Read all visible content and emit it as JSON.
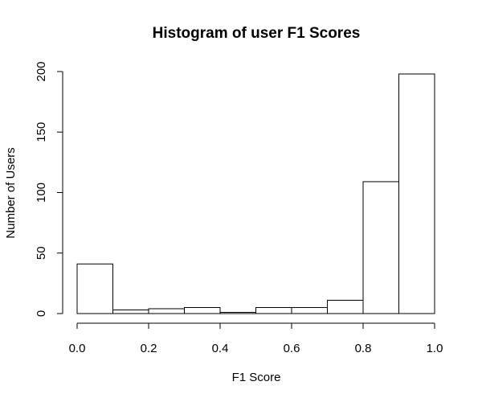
{
  "chart_data": {
    "type": "bar",
    "title": "Histogram of user F1 Scores",
    "xlabel": "F1 Score",
    "ylabel": "Number of Users",
    "bins": [
      {
        "start": 0.0,
        "end": 0.1,
        "count": 41
      },
      {
        "start": 0.1,
        "end": 0.2,
        "count": 3
      },
      {
        "start": 0.2,
        "end": 0.3,
        "count": 4
      },
      {
        "start": 0.3,
        "end": 0.4,
        "count": 5
      },
      {
        "start": 0.4,
        "end": 0.5,
        "count": 1
      },
      {
        "start": 0.5,
        "end": 0.6,
        "count": 5
      },
      {
        "start": 0.6,
        "end": 0.7,
        "count": 5
      },
      {
        "start": 0.7,
        "end": 0.8,
        "count": 11
      },
      {
        "start": 0.8,
        "end": 0.9,
        "count": 109
      },
      {
        "start": 0.9,
        "end": 1.0,
        "count": 198
      }
    ],
    "xlim": [
      0,
      1
    ],
    "ylim": [
      0,
      200
    ],
    "x_ticks": [
      0.0,
      0.2,
      0.4,
      0.6,
      0.8,
      1.0
    ],
    "x_tick_labels": [
      "0.0",
      "0.2",
      "0.4",
      "0.6",
      "0.8",
      "1.0"
    ],
    "y_ticks": [
      0,
      50,
      100,
      150,
      200
    ],
    "y_tick_labels": [
      "0",
      "50",
      "100",
      "150",
      "200"
    ],
    "grid": false,
    "bar_fill": "#ffffff",
    "bar_stroke": "#000000"
  }
}
